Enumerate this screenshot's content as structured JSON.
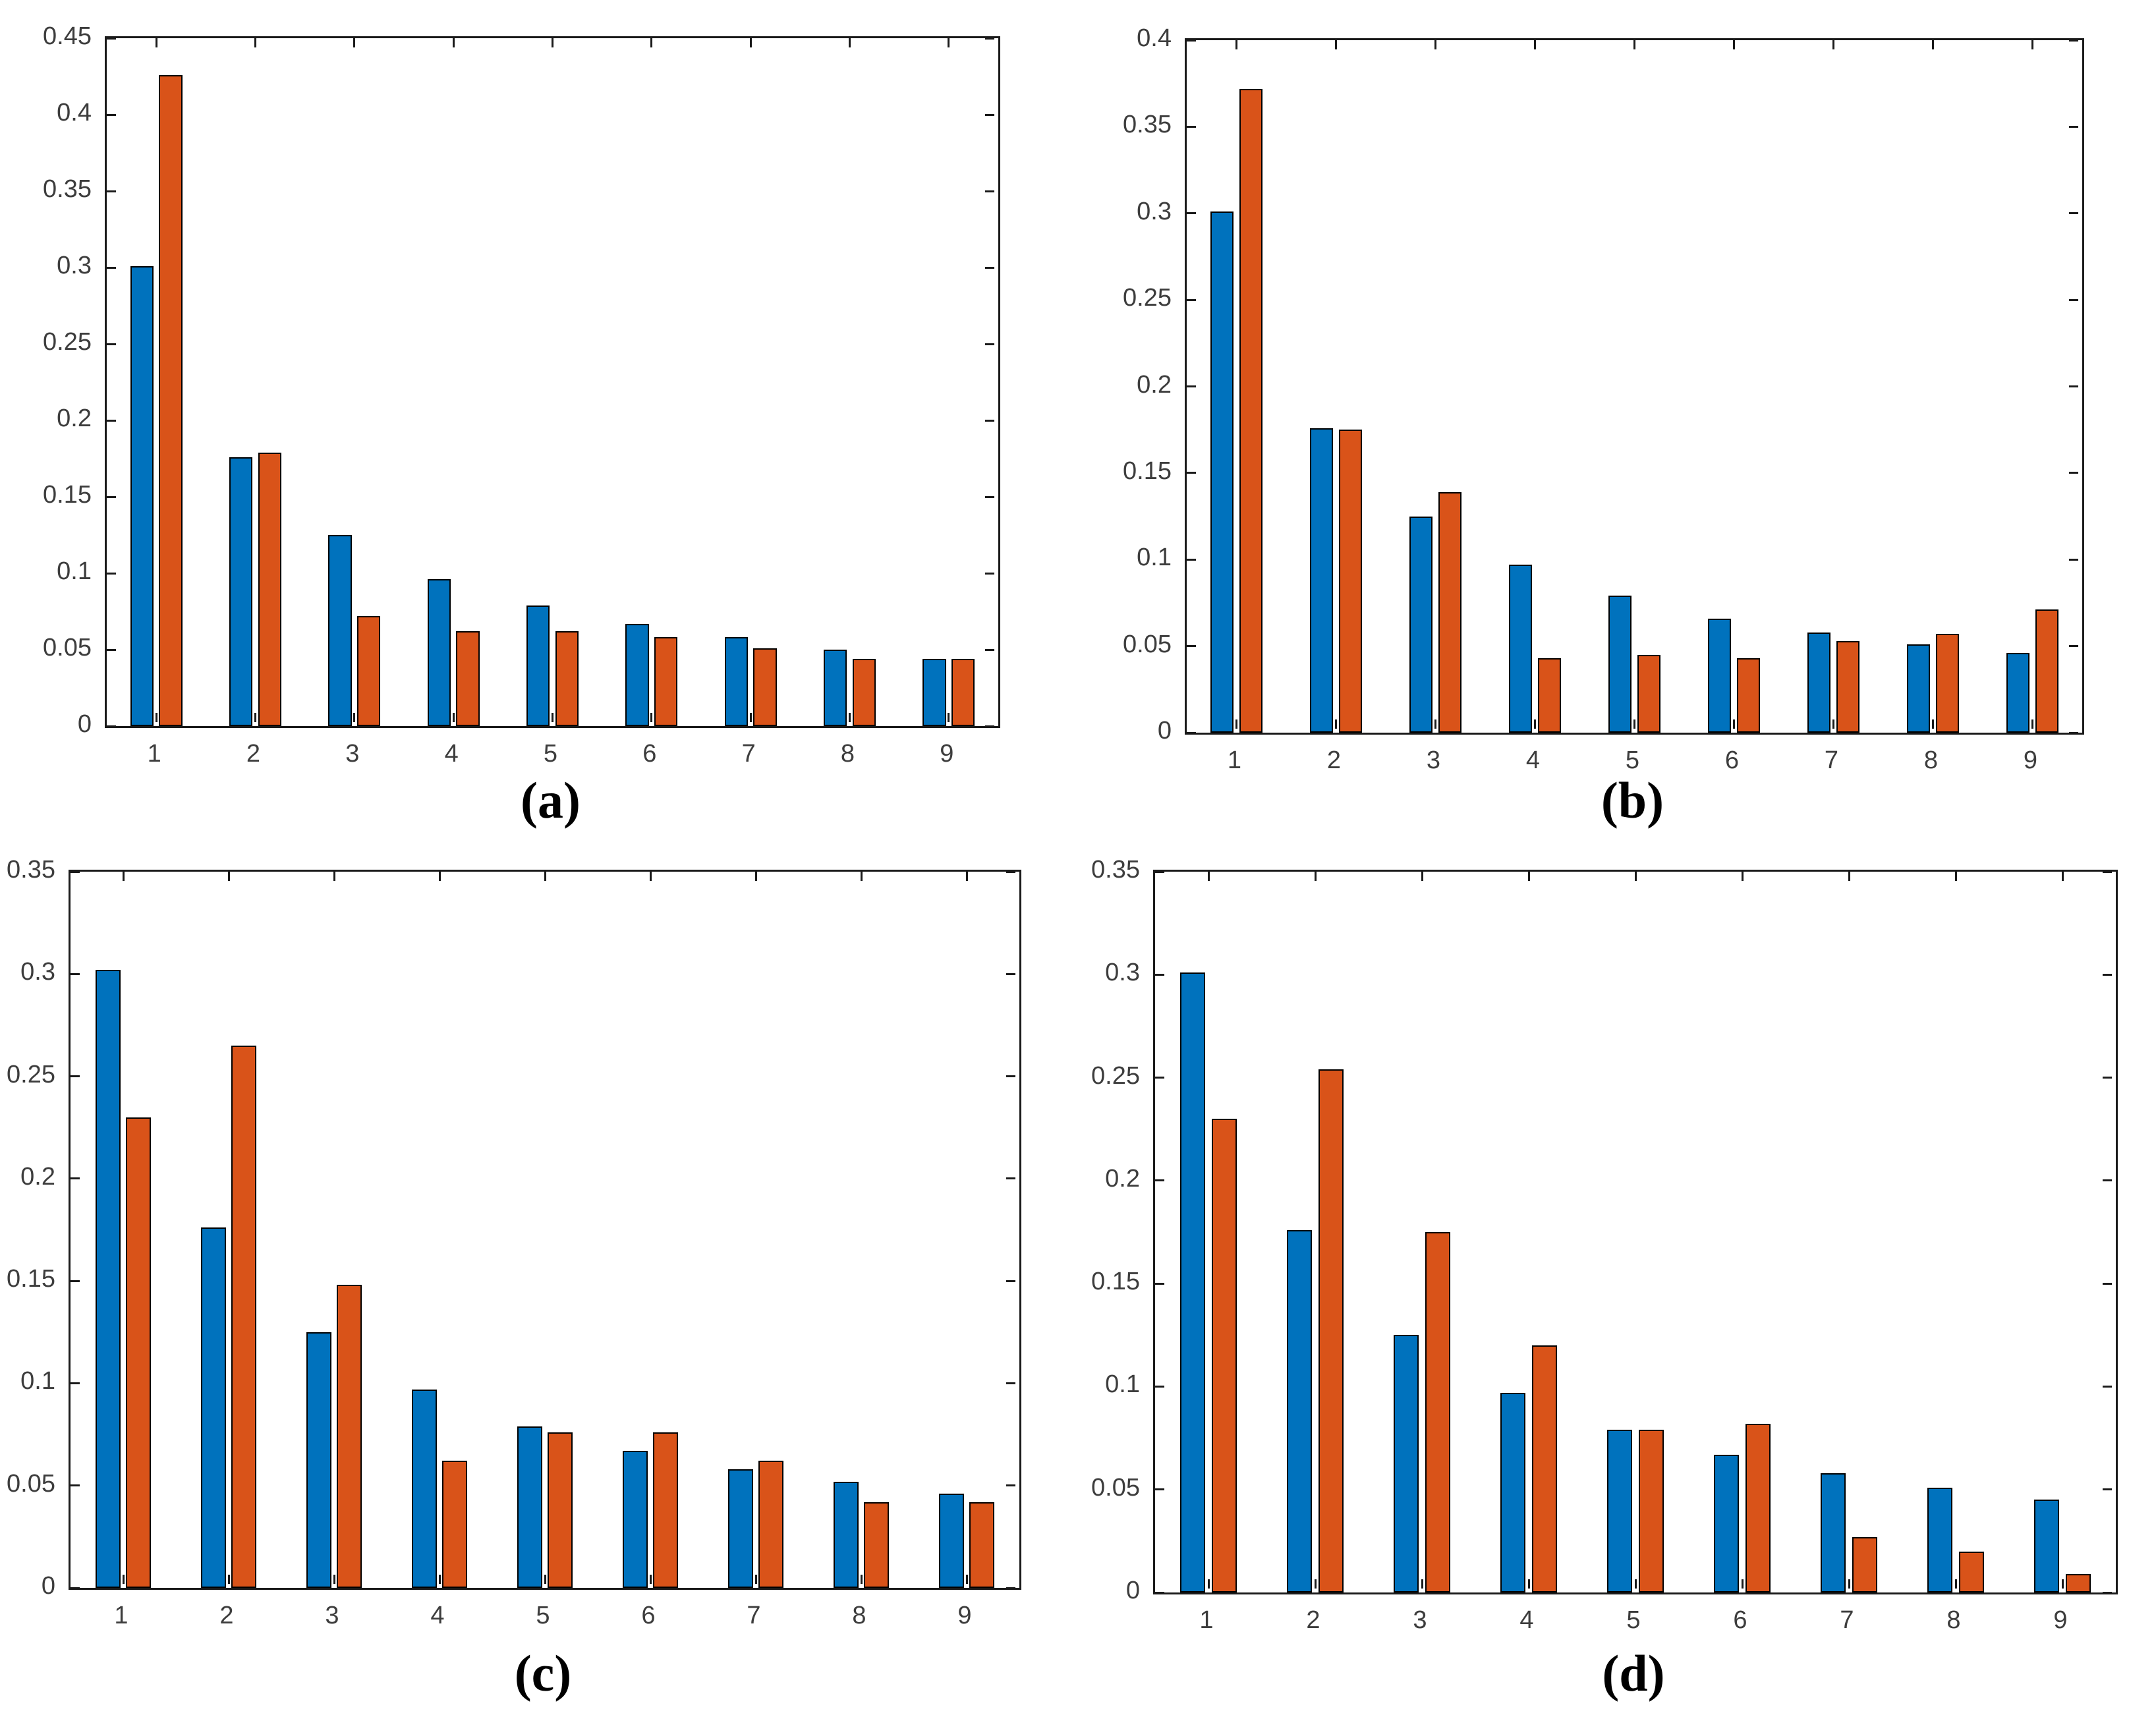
{
  "figure": {
    "background": "#ffffff",
    "axis_color": "#1a1a1a",
    "tick_label_color": "#3d3d3d",
    "description_note": ""
  },
  "chart_data": [
    {
      "id": "a",
      "panel_label": "(a)",
      "type": "bar",
      "title": "",
      "xlabel": "",
      "ylabel": "",
      "grid": "off",
      "legend": "none",
      "categories": [
        "1",
        "2",
        "3",
        "4",
        "5",
        "6",
        "7",
        "8",
        "9"
      ],
      "ylim": [
        0,
        0.45
      ],
      "yticks": [
        "0",
        "0.05",
        "0.1",
        "0.15",
        "0.2",
        "0.25",
        "0.3",
        "0.35",
        "0.4",
        "0.45"
      ],
      "series": [
        {
          "name": "series-1-blue",
          "color": "#0072BD",
          "values": [
            0.301,
            0.176,
            0.125,
            0.096,
            0.079,
            0.067,
            0.058,
            0.05,
            0.044
          ]
        },
        {
          "name": "series-2-orange",
          "color": "#D95319",
          "values": [
            0.426,
            0.179,
            0.072,
            0.062,
            0.062,
            0.058,
            0.051,
            0.044,
            0.044
          ]
        }
      ]
    },
    {
      "id": "b",
      "panel_label": "(b)",
      "type": "bar",
      "title": "",
      "xlabel": "",
      "ylabel": "",
      "grid": "off",
      "legend": "none",
      "categories": [
        "1",
        "2",
        "3",
        "4",
        "5",
        "6",
        "7",
        "8",
        "9"
      ],
      "ylim": [
        0,
        0.4
      ],
      "yticks": [
        "0",
        "0.05",
        "0.1",
        "0.15",
        "0.2",
        "0.25",
        "0.3",
        "0.35",
        "0.4"
      ],
      "series": [
        {
          "name": "series-1-blue",
          "color": "#0072BD",
          "values": [
            0.301,
            0.176,
            0.125,
            0.097,
            0.079,
            0.066,
            0.058,
            0.051,
            0.046
          ]
        },
        {
          "name": "series-2-orange",
          "color": "#D95319",
          "values": [
            0.372,
            0.175,
            0.139,
            0.043,
            0.045,
            0.043,
            0.053,
            0.057,
            0.071
          ]
        }
      ]
    },
    {
      "id": "c",
      "panel_label": "(c)",
      "type": "bar",
      "title": "",
      "xlabel": "",
      "ylabel": "",
      "grid": "off",
      "legend": "none",
      "categories": [
        "1",
        "2",
        "3",
        "4",
        "5",
        "6",
        "7",
        "8",
        "9"
      ],
      "ylim": [
        0,
        0.35
      ],
      "yticks": [
        "0",
        "0.05",
        "0.1",
        "0.15",
        "0.2",
        "0.25",
        "0.3",
        "0.35"
      ],
      "series": [
        {
          "name": "series-1-blue",
          "color": "#0072BD",
          "values": [
            0.302,
            0.176,
            0.125,
            0.097,
            0.079,
            0.067,
            0.058,
            0.052,
            0.046
          ]
        },
        {
          "name": "series-2-orange",
          "color": "#D95319",
          "values": [
            0.23,
            0.265,
            0.148,
            0.062,
            0.076,
            0.076,
            0.062,
            0.042,
            0.042
          ]
        }
      ]
    },
    {
      "id": "d",
      "panel_label": "(d)",
      "type": "bar",
      "title": "",
      "xlabel": "",
      "ylabel": "",
      "grid": "off",
      "legend": "none",
      "categories": [
        "1",
        "2",
        "3",
        "4",
        "5",
        "6",
        "7",
        "8",
        "9"
      ],
      "ylim": [
        0,
        0.35
      ],
      "yticks": [
        "0",
        "0.05",
        "0.1",
        "0.15",
        "0.2",
        "0.25",
        "0.3",
        "0.35"
      ],
      "series": [
        {
          "name": "series-1-blue",
          "color": "#0072BD",
          "values": [
            0.301,
            0.176,
            0.125,
            0.097,
            0.079,
            0.067,
            0.058,
            0.051,
            0.045
          ]
        },
        {
          "name": "series-2-orange",
          "color": "#D95319",
          "values": [
            0.23,
            0.254,
            0.175,
            0.12,
            0.079,
            0.082,
            0.027,
            0.02,
            0.009
          ]
        }
      ]
    }
  ]
}
